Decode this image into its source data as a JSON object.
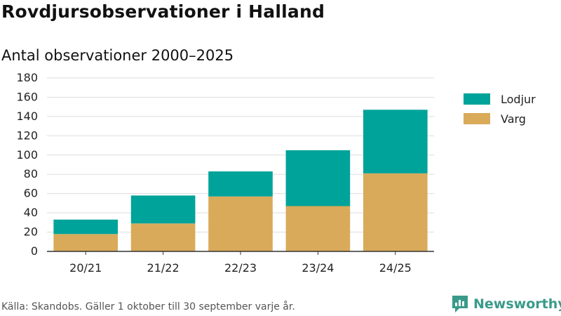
{
  "header": {
    "title": "Rovdjursobservationer i Halland",
    "subtitle": "Antal observationer 2000–2025"
  },
  "footer": {
    "source": "Källa: Skandobs. Gäller 1 oktober till 30 september varje år.",
    "brand": "Newsworthy"
  },
  "colors": {
    "lodjur": "#00a39a",
    "varg": "#d9aa5a",
    "grid": "#dddddd",
    "axis": "#333333",
    "brand": "#3a9a8a"
  },
  "chart_data": {
    "type": "bar",
    "stacked": true,
    "title": "Rovdjursobservationer i Halland",
    "subtitle": "Antal observationer 2000–2025",
    "xlabel": "",
    "ylabel": "",
    "categories": [
      "20/21",
      "21/22",
      "22/23",
      "23/24",
      "24/25"
    ],
    "series": [
      {
        "name": "Varg",
        "color": "#d9aa5a",
        "values": [
          18,
          29,
          57,
          47,
          81
        ]
      },
      {
        "name": "Lodjur",
        "color": "#00a39a",
        "values": [
          15,
          29,
          26,
          58,
          66
        ]
      }
    ],
    "ylim": [
      0,
      180
    ],
    "yticks": [
      0,
      20,
      40,
      60,
      80,
      100,
      120,
      140,
      160,
      180
    ],
    "grid": true,
    "legend": "right",
    "legend_order": [
      "Lodjur",
      "Varg"
    ]
  }
}
